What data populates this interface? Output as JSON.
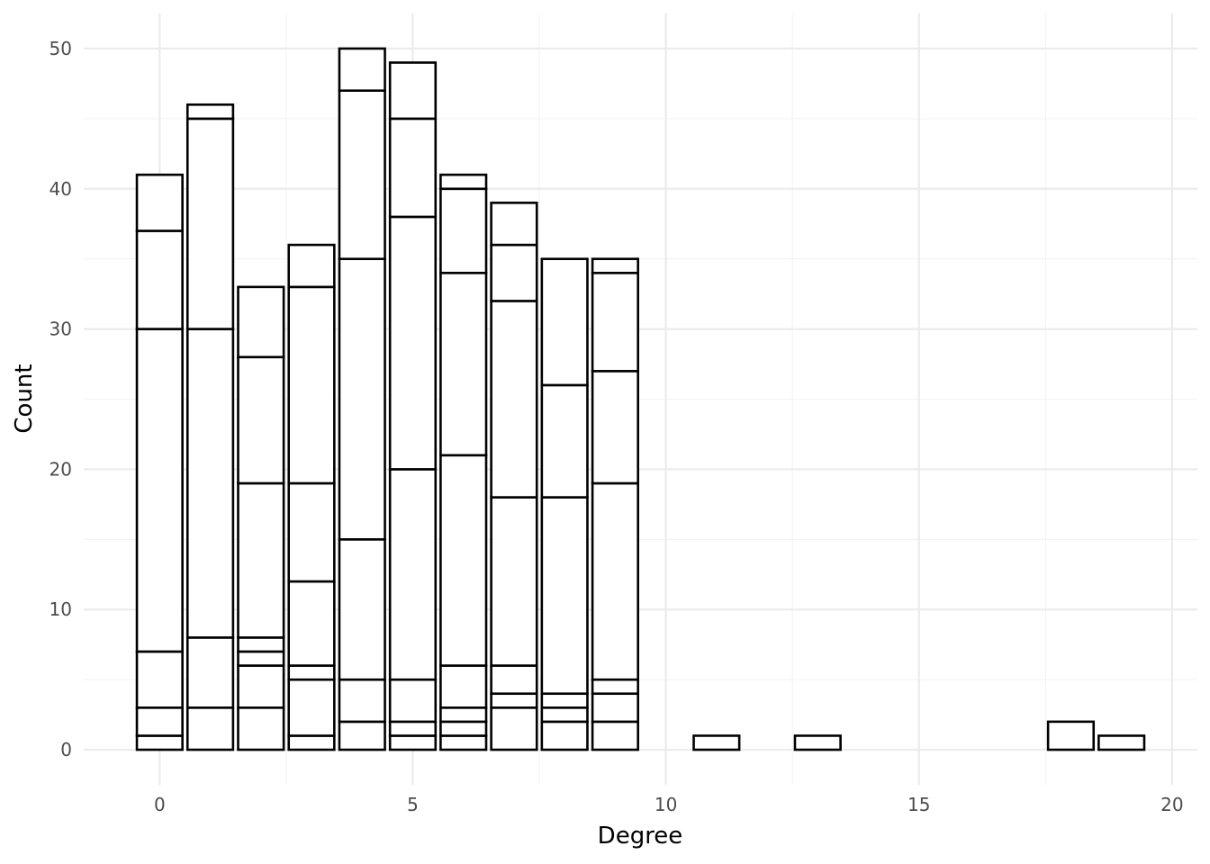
{
  "chart_data": {
    "type": "bar",
    "stacked": true,
    "title": "",
    "xlabel": "Degree",
    "ylabel": "Count",
    "xlim": [
      -1.5,
      20.5
    ],
    "ylim": [
      -2.5,
      52.5
    ],
    "x_ticks": [
      0,
      5,
      10,
      15,
      20
    ],
    "y_ticks": [
      0,
      10,
      20,
      30,
      40,
      50
    ],
    "grid": true,
    "bar_width": 0.9,
    "legend": "none",
    "bars": [
      {
        "x": 0,
        "boundaries": [
          0,
          1,
          3,
          7,
          30,
          37,
          41
        ]
      },
      {
        "x": 1,
        "boundaries": [
          0,
          3,
          8,
          30,
          45,
          46
        ]
      },
      {
        "x": 2,
        "boundaries": [
          0,
          3,
          6,
          7,
          8,
          19,
          28,
          33
        ]
      },
      {
        "x": 3,
        "boundaries": [
          0,
          1,
          5,
          6,
          12,
          19,
          33,
          36
        ]
      },
      {
        "x": 4,
        "boundaries": [
          0,
          2,
          5,
          15,
          35,
          47,
          50
        ]
      },
      {
        "x": 5,
        "boundaries": [
          0,
          1,
          2,
          5,
          20,
          38,
          45,
          49
        ]
      },
      {
        "x": 6,
        "boundaries": [
          0,
          1,
          2,
          3,
          6,
          21,
          34,
          40,
          41
        ]
      },
      {
        "x": 7,
        "boundaries": [
          0,
          3,
          4,
          6,
          18,
          32,
          36,
          39
        ]
      },
      {
        "x": 8,
        "boundaries": [
          0,
          2,
          3,
          4,
          18,
          26,
          35
        ]
      },
      {
        "x": 9,
        "boundaries": [
          0,
          2,
          4,
          5,
          19,
          27,
          34,
          35
        ]
      },
      {
        "x": 11,
        "boundaries": [
          0,
          1
        ]
      },
      {
        "x": 13,
        "boundaries": [
          0,
          1
        ]
      },
      {
        "x": 18,
        "boundaries": [
          0,
          2
        ]
      },
      {
        "x": 19,
        "boundaries": [
          0,
          1
        ]
      }
    ]
  }
}
